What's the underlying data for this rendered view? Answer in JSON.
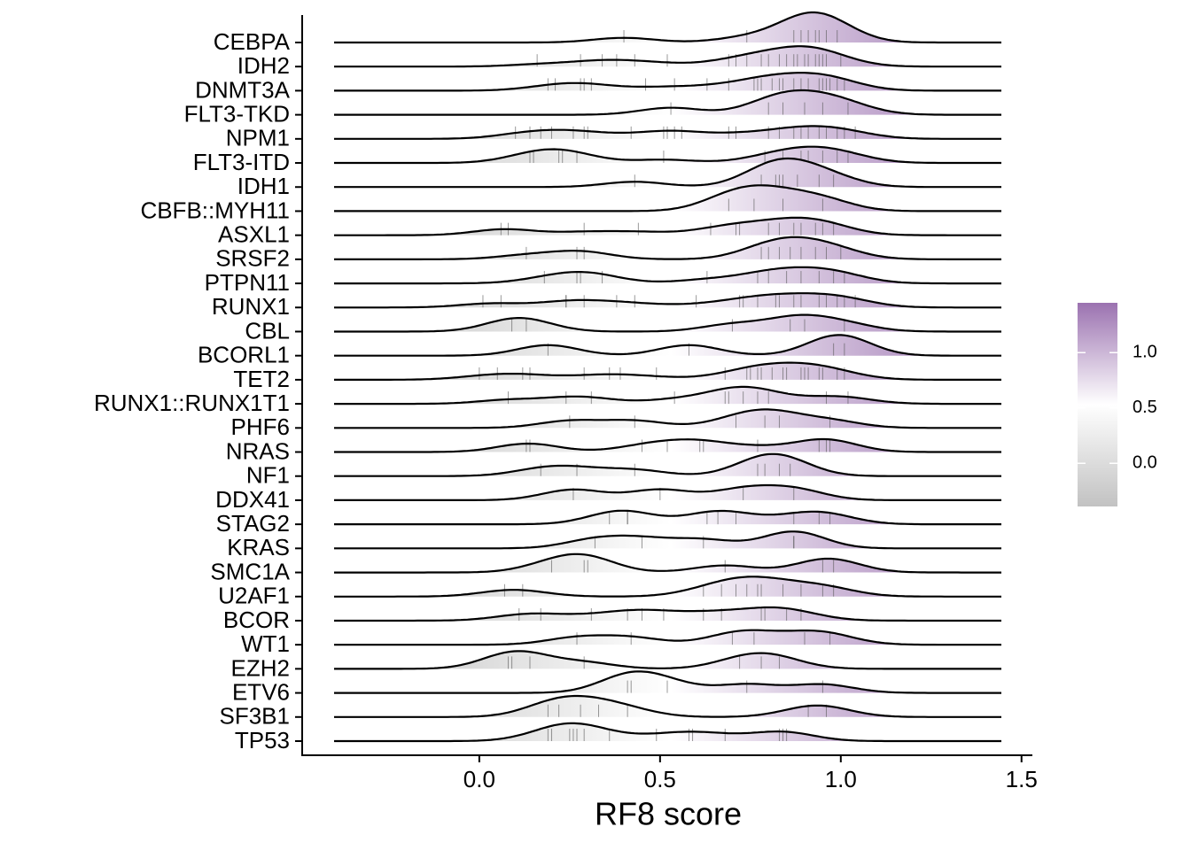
{
  "chart_data": {
    "type": "ridgeline",
    "xlabel": "RF8 score",
    "categories": [
      "CEBPA",
      "IDH2",
      "DNMT3A",
      "FLT3-TKD",
      "NPM1",
      "FLT3-ITD",
      "IDH1",
      "CBFB::MYH11",
      "ASXL1",
      "SRSF2",
      "PTPN11",
      "RUNX1",
      "CBL",
      "BCORL1",
      "TET2",
      "RUNX1::RUNX1T1",
      "PHF6",
      "NRAS",
      "NF1",
      "DDX41",
      "STAG2",
      "KRAS",
      "SMC1A",
      "U2AF1",
      "BCOR",
      "WT1",
      "EZH2",
      "ETV6",
      "SF3B1",
      "TP53"
    ],
    "values": [
      [
        0.4,
        0.74,
        0.87,
        0.89,
        0.91,
        0.93,
        0.94,
        0.96,
        0.99
      ],
      [
        0.16,
        0.28,
        0.34,
        0.38,
        0.43,
        0.52,
        0.69,
        0.71,
        0.74,
        0.78,
        0.8,
        0.83,
        0.85,
        0.87,
        0.88,
        0.9,
        0.91,
        0.93,
        0.94,
        0.95,
        0.96,
        1.0
      ],
      [
        0.19,
        0.21,
        0.28,
        0.29,
        0.31,
        0.46,
        0.54,
        0.63,
        0.69,
        0.76,
        0.77,
        0.78,
        0.81,
        0.83,
        0.84,
        0.87,
        0.89,
        0.91,
        0.94,
        0.95,
        0.96,
        0.97,
        0.99,
        1.01
      ],
      [
        0.53,
        0.8,
        0.84,
        0.9,
        0.95,
        1.02
      ],
      [
        0.1,
        0.14,
        0.17,
        0.2,
        0.26,
        0.29,
        0.3,
        0.42,
        0.51,
        0.52,
        0.54,
        0.56,
        0.69,
        0.71,
        0.8,
        0.83,
        0.87,
        0.89,
        0.91,
        0.94,
        0.96,
        0.99,
        1.01,
        1.04
      ],
      [
        0.14,
        0.15,
        0.22,
        0.23,
        0.27,
        0.51,
        0.79,
        0.84,
        0.89,
        0.91,
        0.95,
        0.99,
        1.02
      ],
      [
        0.43,
        0.78,
        0.82,
        0.83,
        0.84,
        0.88,
        0.94,
        0.98
      ],
      [
        0.69,
        0.76,
        0.84,
        0.95
      ],
      [
        0.06,
        0.08,
        0.29,
        0.44,
        0.64,
        0.71,
        0.72,
        0.8,
        0.83,
        0.87,
        0.89,
        0.93,
        0.95,
        0.98
      ],
      [
        0.13,
        0.27,
        0.29,
        0.78,
        0.8,
        0.83,
        0.86,
        0.89,
        0.93,
        0.96,
        1.0
      ],
      [
        0.18,
        0.27,
        0.28,
        0.34,
        0.63,
        0.77,
        0.8,
        0.85,
        0.89,
        0.94,
        0.98,
        1.01
      ],
      [
        0.01,
        0.06,
        0.24,
        0.24,
        0.29,
        0.38,
        0.43,
        0.6,
        0.72,
        0.73,
        0.77,
        0.82,
        0.83,
        0.87,
        0.89,
        0.94,
        0.96,
        0.99,
        1.01,
        1.04
      ],
      [
        0.09,
        0.13,
        0.7,
        0.86,
        0.9,
        1.01
      ],
      [
        0.19,
        0.58,
        0.98,
        1.01
      ],
      [
        0.0,
        0.05,
        0.12,
        0.14,
        0.29,
        0.36,
        0.39,
        0.49,
        0.68,
        0.74,
        0.75,
        0.77,
        0.78,
        0.81,
        0.84,
        0.85,
        0.89,
        0.9,
        0.91,
        0.94,
        0.95,
        0.99,
        1.01
      ],
      [
        0.08,
        0.24,
        0.31,
        0.54,
        0.68,
        0.69,
        0.73,
        0.77,
        0.8,
        0.96,
        1.02
      ],
      [
        0.25,
        0.43,
        0.71,
        0.79,
        0.83,
        0.97
      ],
      [
        0.13,
        0.14,
        0.45,
        0.52,
        0.61,
        0.62,
        0.77,
        0.94,
        0.96,
        0.97
      ],
      [
        0.17,
        0.27,
        0.43,
        0.77,
        0.79,
        0.83,
        0.86
      ],
      [
        0.26,
        0.5,
        0.73,
        0.87
      ],
      [
        0.36,
        0.41,
        0.41,
        0.63,
        0.66,
        0.71,
        0.87,
        0.94,
        0.97
      ],
      [
        0.32,
        0.45,
        0.62,
        0.87,
        0.87
      ],
      [
        0.2,
        0.29,
        0.3,
        0.68,
        0.95,
        0.98
      ],
      [
        0.07,
        0.12,
        0.62,
        0.67,
        0.71,
        0.74,
        0.77,
        0.78,
        0.84,
        0.89,
        0.95,
        0.98
      ],
      [
        0.11,
        0.17,
        0.31,
        0.41,
        0.45,
        0.51,
        0.62,
        0.67,
        0.78,
        0.79,
        0.85,
        0.89
      ],
      [
        0.27,
        0.42,
        0.7,
        0.76,
        0.9,
        0.97
      ],
      [
        0.08,
        0.09,
        0.14,
        0.29,
        0.72,
        0.78,
        0.83
      ],
      [
        0.41,
        0.42,
        0.52,
        0.74,
        0.95
      ],
      [
        0.19,
        0.22,
        0.28,
        0.33,
        0.41,
        0.91,
        0.96
      ],
      [
        0.19,
        0.2,
        0.25,
        0.26,
        0.27,
        0.29,
        0.36,
        0.49,
        0.58,
        0.59,
        0.68,
        0.83,
        0.84,
        0.85
      ]
    ],
    "xlim": [
      -0.49,
      1.53
    ],
    "xticks": [
      {
        "value": 0,
        "label": "0.0"
      },
      0.5,
      {
        "value": 1,
        "label": "1.0"
      },
      1.5
    ],
    "colorbar": {
      "lim": [
        -0.39,
        1.45
      ],
      "ticks": [
        {
          "value": 0,
          "label": "0.0"
        },
        0.5,
        {
          "value": 1,
          "label": "1.0"
        }
      ],
      "colors": [
        "#c2c2c2",
        "#ffffff",
        "#9b72b0"
      ]
    }
  }
}
